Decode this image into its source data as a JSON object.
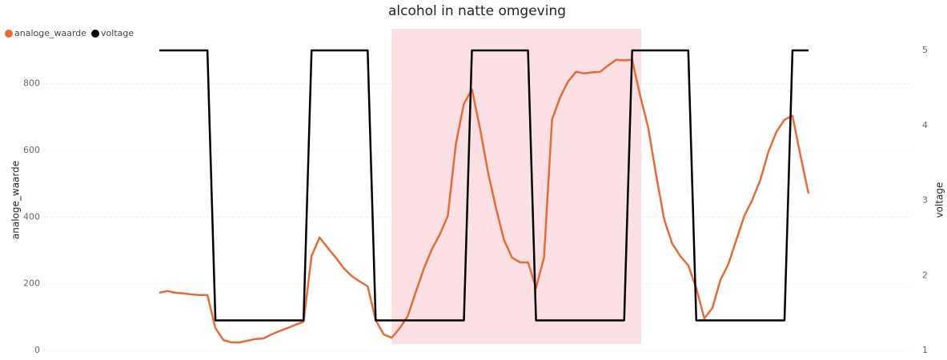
{
  "chart_data": {
    "type": "line",
    "title": "alcohol in natte omgeving",
    "categories": [
      null,
      null,
      null,
      null,
      null,
      null,
      null,
      null,
      null,
      null,
      null,
      null,
      null,
      null,
      null,
      null,
      null,
      null,
      null,
      null,
      null,
      null,
      null,
      null,
      null,
      null,
      null,
      null,
      null,
      null,
      null,
      null,
      null,
      null,
      null,
      null,
      null,
      null,
      null,
      null,
      null,
      null,
      null,
      null,
      null,
      null,
      null,
      null,
      null,
      null,
      null,
      null,
      null,
      null,
      null,
      null,
      null,
      null,
      null,
      null,
      null,
      null,
      null,
      null,
      null,
      null,
      null,
      null,
      null,
      null,
      null,
      null,
      null,
      null,
      null,
      null,
      null,
      null,
      null,
      null,
      null,
      null
    ],
    "y_label": "analoge_waarde",
    "y2_label": "voltage",
    "ylim": [
      0,
      900
    ],
    "yticks": [
      0,
      200,
      400,
      600,
      800
    ],
    "y2lim": [
      1,
      5
    ],
    "y2ticks": [
      1,
      2,
      3,
      4,
      5
    ],
    "grid": true,
    "legend": "top-left",
    "series": [
      {
        "name": "analoge_waarde",
        "color": "#e66c37",
        "values": [
          173,
          178,
          173,
          171,
          168,
          166,
          166,
          67,
          31,
          24,
          24,
          29,
          34,
          36,
          48,
          58,
          67,
          77,
          86,
          283,
          339,
          308,
          279,
          247,
          223,
          207,
          192,
          91,
          48,
          38,
          67,
          103,
          175,
          245,
          303,
          348,
          404,
          620,
          740,
          783,
          668,
          536,
          428,
          332,
          279,
          264,
          264,
          187,
          279,
          692,
          759,
          807,
          836,
          831,
          834,
          836,
          855,
          872,
          870,
          872,
          764,
          668,
          524,
          392,
          320,
          283,
          255,
          187,
          96,
          127,
          211,
          259,
          332,
          404,
          452,
          512,
          596,
          656,
          692,
          704,
          584,
          471
        ]
      },
      {
        "name": "voltage",
        "color": "#000000",
        "axis": "y2",
        "values": [
          5,
          5,
          5,
          5,
          5,
          5,
          5,
          1.4,
          1.4,
          1.4,
          1.4,
          1.4,
          1.4,
          1.4,
          1.4,
          1.4,
          1.4,
          1.4,
          1.4,
          5,
          5,
          5,
          5,
          5,
          5,
          5,
          5,
          1.4,
          1.4,
          1.4,
          1.4,
          1.4,
          1.4,
          1.4,
          1.4,
          1.4,
          1.4,
          1.4,
          1.4,
          5,
          5,
          5,
          5,
          5,
          5,
          5,
          5,
          1.4,
          1.4,
          1.4,
          1.4,
          1.4,
          1.4,
          1.4,
          1.4,
          1.4,
          1.4,
          1.4,
          1.4,
          5,
          5,
          5,
          5,
          5,
          5,
          5,
          5,
          1.4,
          1.4,
          1.4,
          1.4,
          1.4,
          1.4,
          1.4,
          1.4,
          1.4,
          1.4,
          1.4,
          1.4,
          5,
          5,
          5
        ]
      }
    ]
  }
}
